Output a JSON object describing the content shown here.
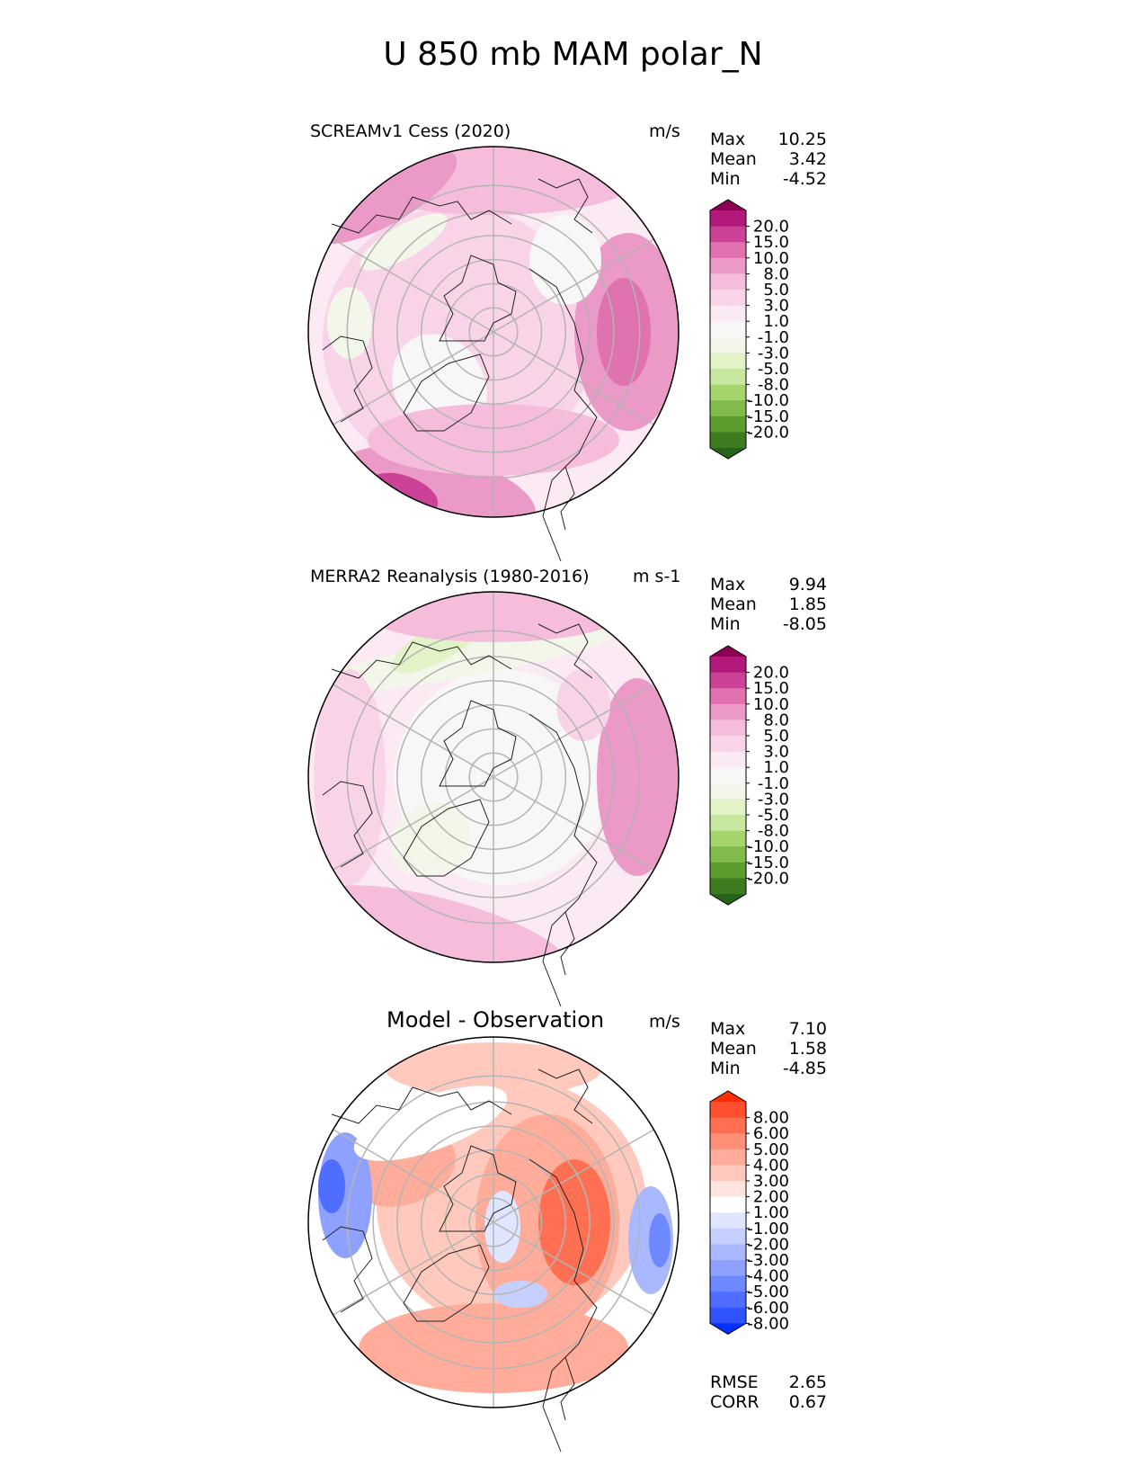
{
  "figure": {
    "title": "U 850 mb MAM polar_N"
  },
  "colors": {
    "ws_scale": [
      "#276419",
      "#3c7c1e",
      "#5b9d2e",
      "#80bb4b",
      "#a5d46d",
      "#c8e7a0",
      "#e3f3c8",
      "#f2f7ea",
      "#f7f7f7",
      "#fbeaf3",
      "#f9d4e8",
      "#f5bddb",
      "#eb9ac8",
      "#df72af",
      "#cc4296",
      "#b3197b",
      "#8e0152"
    ],
    "diff_scale": [
      "#0230ff",
      "#2f54ff",
      "#4f6dff",
      "#6e88ff",
      "#8ea1ff",
      "#aab8ff",
      "#c6d0ff",
      "#e0e6ff",
      "#ffffff",
      "#ffe5de",
      "#ffcabd",
      "#ffad9a",
      "#ff8f77",
      "#ff7053",
      "#ff4f2e",
      "#ff2c05"
    ]
  },
  "chart_data": [
    {
      "type": "heatmap",
      "projection": "north polar stereographic",
      "title": "SCREAMv1 Cess (2020)",
      "units": "m/s",
      "stats": {
        "max_label": "Max",
        "max": "10.25",
        "mean_label": "Mean",
        "mean": "3.42",
        "min_label": "Min",
        "min": "-4.52"
      },
      "colorbar_levels": [
        "20.0",
        "15.0",
        "10.0",
        "8.0",
        "5.0",
        "3.0",
        "1.0",
        "-1.0",
        "-3.0",
        "-5.0",
        "-8.0",
        "-10.0",
        "-15.0",
        "-20.0"
      ]
    },
    {
      "type": "heatmap",
      "projection": "north polar stereographic",
      "title": "MERRA2 Reanalysis (1980-2016)",
      "units": "m s-1",
      "stats": {
        "max_label": "Max",
        "max": "9.94",
        "mean_label": "Mean",
        "mean": "1.85",
        "min_label": "Min",
        "min": "-8.05"
      },
      "colorbar_levels": [
        "20.0",
        "15.0",
        "10.0",
        "8.0",
        "5.0",
        "3.0",
        "1.0",
        "-1.0",
        "-3.0",
        "-5.0",
        "-8.0",
        "-10.0",
        "-15.0",
        "-20.0"
      ]
    },
    {
      "type": "heatmap",
      "projection": "north polar stereographic",
      "title": "Model - Observation",
      "units": "m/s",
      "stats": {
        "max_label": "Max",
        "max": "7.10",
        "mean_label": "Mean",
        "mean": "1.58",
        "min_label": "Min",
        "min": "-4.85"
      },
      "colorbar_levels": [
        "8.00",
        "6.00",
        "5.00",
        "4.00",
        "3.00",
        "2.00",
        "1.00",
        "-1.00",
        "-2.00",
        "-3.00",
        "-4.00",
        "-5.00",
        "-6.00",
        "-8.00"
      ],
      "metrics": {
        "rmse_label": "RMSE",
        "rmse": "2.65",
        "corr_label": "CORR",
        "corr": "0.67"
      }
    }
  ]
}
